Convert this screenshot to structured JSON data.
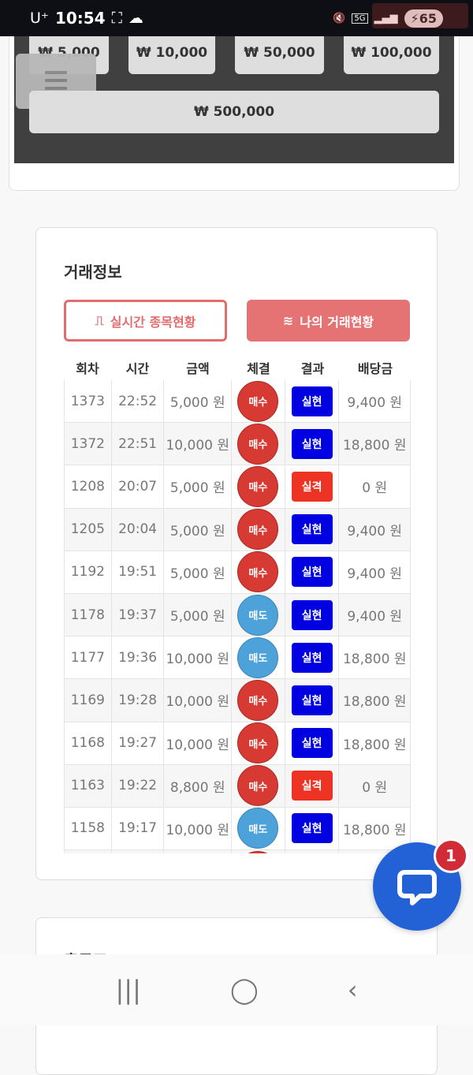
{
  "status_bar": {
    "carrier": "U⁺",
    "time": "10:54",
    "network": "5G",
    "battery": "65"
  },
  "amount_buttons": [
    {
      "label": "₩ 5,000"
    },
    {
      "label": "₩ 10,000"
    },
    {
      "label": "₩ 50,000"
    },
    {
      "label": "₩ 100,000"
    },
    {
      "label": "₩ 500,000"
    }
  ],
  "trade_info": {
    "title": "거래정보",
    "tabs": [
      {
        "label": "실시간 종목현황",
        "icon": "pulse-icon",
        "active": false
      },
      {
        "label": "나의 거래현황",
        "icon": "waves-icon",
        "active": true
      }
    ],
    "columns": [
      "회차",
      "시간",
      "금액",
      "체결",
      "결과",
      "배당금"
    ],
    "rows": [
      {
        "round": "1373",
        "time": "22:52",
        "amount": "5,000 원",
        "exec": "매수",
        "exec_type": "buy",
        "result": "실현",
        "result_type": "win",
        "payout": "9,400 원"
      },
      {
        "round": "1372",
        "time": "22:51",
        "amount": "10,000 원",
        "exec": "매수",
        "exec_type": "buy",
        "result": "실현",
        "result_type": "win",
        "payout": "18,800 원"
      },
      {
        "round": "1208",
        "time": "20:07",
        "amount": "5,000 원",
        "exec": "매수",
        "exec_type": "buy",
        "result": "실격",
        "result_type": "lose",
        "payout": "0 원"
      },
      {
        "round": "1205",
        "time": "20:04",
        "amount": "5,000 원",
        "exec": "매수",
        "exec_type": "buy",
        "result": "실현",
        "result_type": "win",
        "payout": "9,400 원"
      },
      {
        "round": "1192",
        "time": "19:51",
        "amount": "5,000 원",
        "exec": "매수",
        "exec_type": "buy",
        "result": "실현",
        "result_type": "win",
        "payout": "9,400 원"
      },
      {
        "round": "1178",
        "time": "19:37",
        "amount": "5,000 원",
        "exec": "매도",
        "exec_type": "sell",
        "result": "실현",
        "result_type": "win",
        "payout": "9,400 원"
      },
      {
        "round": "1177",
        "time": "19:36",
        "amount": "10,000 원",
        "exec": "매도",
        "exec_type": "sell",
        "result": "실현",
        "result_type": "win",
        "payout": "18,800 원"
      },
      {
        "round": "1169",
        "time": "19:28",
        "amount": "10,000 원",
        "exec": "매수",
        "exec_type": "buy",
        "result": "실현",
        "result_type": "win",
        "payout": "18,800 원"
      },
      {
        "round": "1168",
        "time": "19:27",
        "amount": "10,000 원",
        "exec": "매수",
        "exec_type": "buy",
        "result": "실현",
        "result_type": "win",
        "payout": "18,800 원"
      },
      {
        "round": "1163",
        "time": "19:22",
        "amount": "8,800 원",
        "exec": "매수",
        "exec_type": "buy",
        "result": "실격",
        "result_type": "lose",
        "payout": "0 원"
      },
      {
        "round": "1158",
        "time": "19:17",
        "amount": "10,000 원",
        "exec": "매도",
        "exec_type": "sell",
        "result": "실현",
        "result_type": "win",
        "payout": "18,800 원"
      },
      {
        "round": "",
        "time": "",
        "amount": "",
        "exec": "",
        "exec_type": "buy",
        "result": "",
        "result_type": "lose",
        "payout": ""
      }
    ]
  },
  "bottom_card": {
    "title": "출금표"
  },
  "chat": {
    "badge_count": "1"
  },
  "colors": {
    "accent": "#e57373",
    "buy": "#d63a33",
    "sell": "#4da3d9",
    "win": "#0000e0",
    "lose": "#ec3324",
    "chat": "#2361d6"
  }
}
